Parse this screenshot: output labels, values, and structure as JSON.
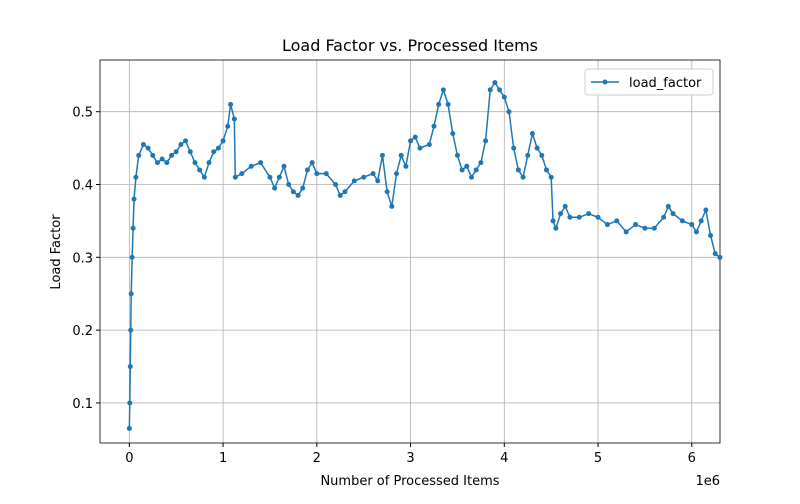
{
  "chart_data": {
    "type": "line",
    "title": "Load Factor vs. Processed Items",
    "x_label": "Number of Processed Items",
    "y_label": "Load Factor",
    "x_offset_label": "1e6",
    "xlim": [
      -0.313,
      6.301
    ],
    "ylim": [
      0.045,
      0.571
    ],
    "xticks": [
      0,
      1,
      2,
      3,
      4,
      5,
      6
    ],
    "yticks": [
      0.1,
      0.2,
      0.3,
      0.4,
      0.5
    ],
    "grid": true,
    "legend": "upper right",
    "x": [
      0,
      0.005,
      0.01,
      0.015,
      0.02,
      0.03,
      0.04,
      0.05,
      0.07,
      0.1,
      0.15,
      0.2,
      0.25,
      0.3,
      0.35,
      0.4,
      0.45,
      0.5,
      0.55,
      0.6,
      0.65,
      0.7,
      0.75,
      0.8,
      0.85,
      0.9,
      0.95,
      1.0,
      1.05,
      1.08,
      1.12,
      1.13,
      1.2,
      1.3,
      1.4,
      1.5,
      1.55,
      1.6,
      1.65,
      1.7,
      1.75,
      1.8,
      1.85,
      1.9,
      1.95,
      2.0,
      2.1,
      2.2,
      2.25,
      2.3,
      2.4,
      2.5,
      2.6,
      2.65,
      2.7,
      2.75,
      2.8,
      2.85,
      2.9,
      2.95,
      3.0,
      3.05,
      3.1,
      3.2,
      3.25,
      3.3,
      3.35,
      3.4,
      3.45,
      3.5,
      3.55,
      3.6,
      3.65,
      3.7,
      3.75,
      3.8,
      3.85,
      3.9,
      3.95,
      4.0,
      4.05,
      4.1,
      4.15,
      4.2,
      4.25,
      4.3,
      4.35,
      4.4,
      4.45,
      4.5,
      4.52,
      4.55,
      4.6,
      4.65,
      4.7,
      4.8,
      4.9,
      5.0,
      5.1,
      5.2,
      5.3,
      5.4,
      5.5,
      5.6,
      5.7,
      5.75,
      5.8,
      5.9,
      6.0,
      6.05,
      6.1,
      6.15,
      6.2,
      6.25,
      6.3
    ],
    "series": [
      {
        "name": "load_factor",
        "color": "#1f77b4",
        "values": [
          0.065,
          0.1,
          0.15,
          0.2,
          0.25,
          0.3,
          0.34,
          0.38,
          0.41,
          0.44,
          0.455,
          0.45,
          0.44,
          0.43,
          0.435,
          0.43,
          0.44,
          0.445,
          0.455,
          0.46,
          0.445,
          0.43,
          0.42,
          0.41,
          0.43,
          0.445,
          0.45,
          0.46,
          0.48,
          0.51,
          0.49,
          0.41,
          0.415,
          0.425,
          0.43,
          0.41,
          0.395,
          0.41,
          0.425,
          0.4,
          0.39,
          0.385,
          0.395,
          0.42,
          0.43,
          0.415,
          0.415,
          0.4,
          0.385,
          0.39,
          0.405,
          0.41,
          0.415,
          0.405,
          0.44,
          0.39,
          0.37,
          0.415,
          0.44,
          0.425,
          0.46,
          0.465,
          0.45,
          0.455,
          0.48,
          0.51,
          0.53,
          0.51,
          0.47,
          0.44,
          0.42,
          0.425,
          0.41,
          0.42,
          0.43,
          0.46,
          0.53,
          0.54,
          0.53,
          0.52,
          0.5,
          0.45,
          0.42,
          0.41,
          0.44,
          0.47,
          0.45,
          0.44,
          0.42,
          0.41,
          0.35,
          0.34,
          0.36,
          0.37,
          0.355,
          0.355,
          0.36,
          0.355,
          0.345,
          0.35,
          0.335,
          0.345,
          0.34,
          0.34,
          0.355,
          0.37,
          0.36,
          0.35,
          0.345,
          0.335,
          0.35,
          0.365,
          0.33,
          0.305,
          0.3
        ]
      }
    ]
  }
}
